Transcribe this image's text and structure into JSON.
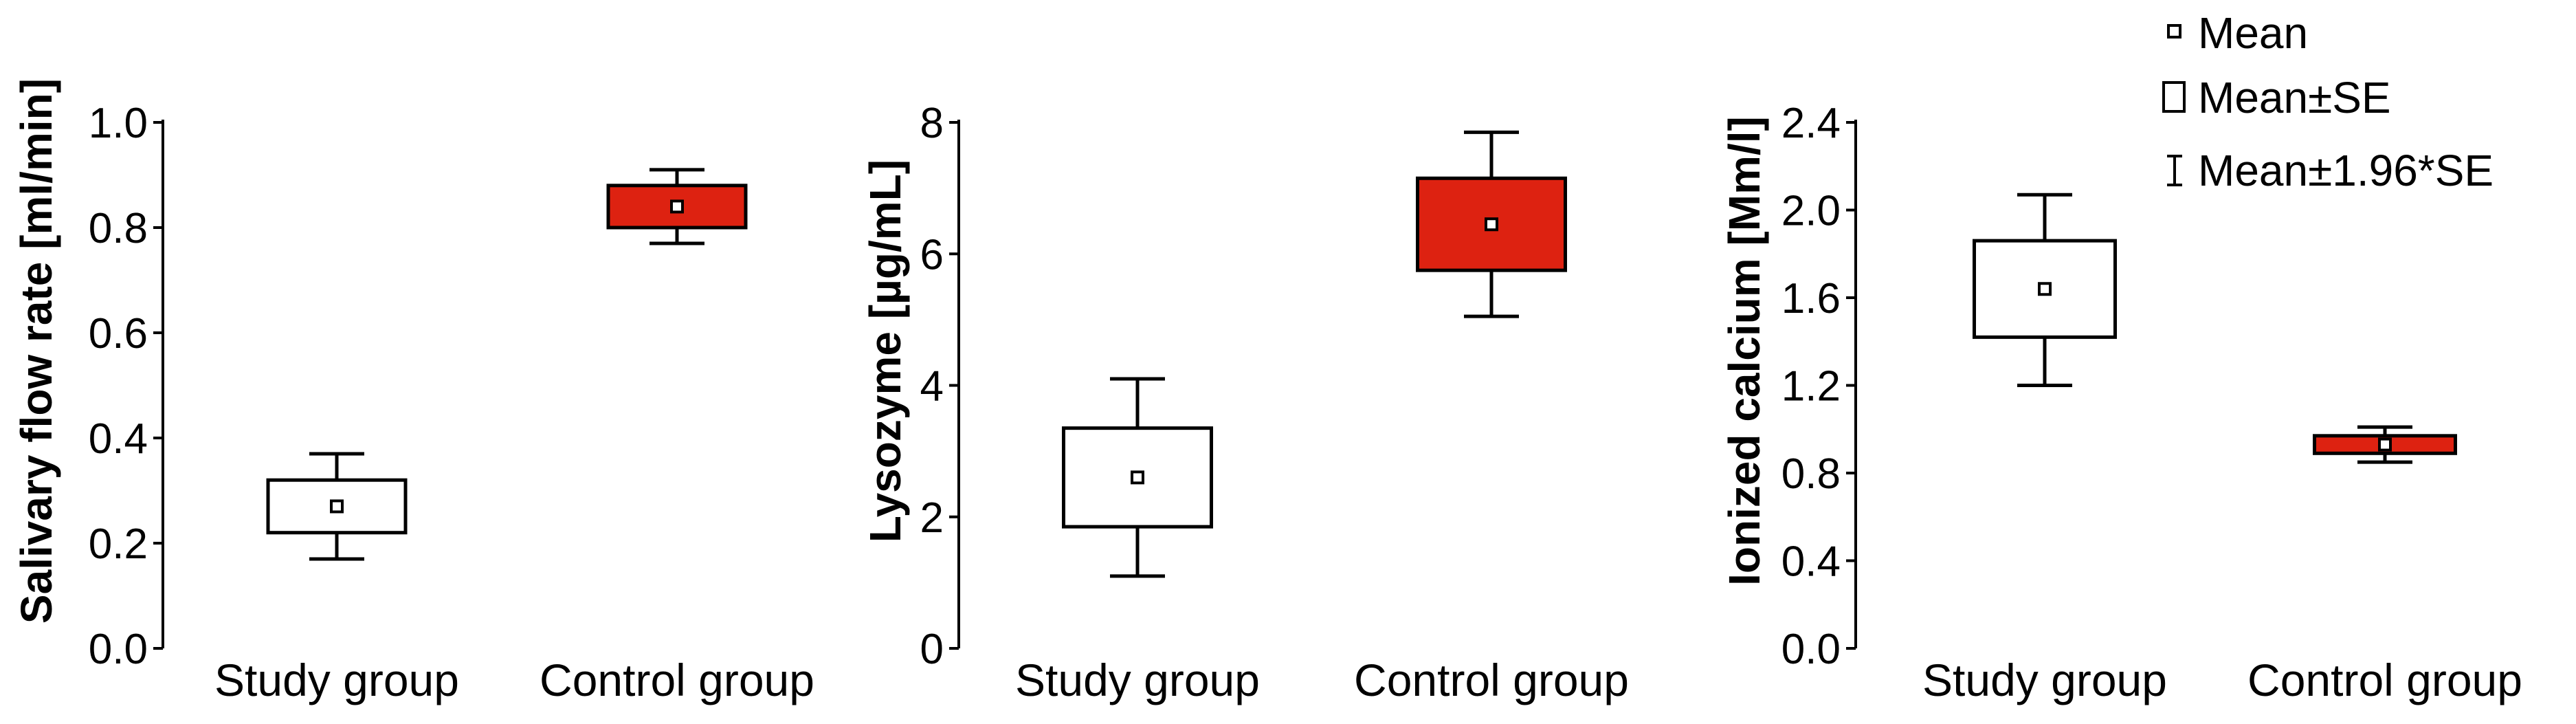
{
  "legend": {
    "mean": "Mean",
    "mean_se": "Mean±SE",
    "mean_ci": "Mean±1.96*SE"
  },
  "colors": {
    "control_fill": "#dd2211",
    "study_fill": "#ffffff",
    "stroke": "#000000"
  },
  "chart_data": [
    {
      "type": "box",
      "ylabel": "Salivary flow rate [ml/min]",
      "ylim": [
        0.0,
        1.0
      ],
      "yticks": [
        "0.0",
        "0.2",
        "0.4",
        "0.6",
        "0.8",
        "1.0"
      ],
      "categories": [
        "Study group",
        "Control group"
      ],
      "series": [
        {
          "category": "Study group",
          "mean": 0.27,
          "se_low": 0.22,
          "se_high": 0.32,
          "ci_low": 0.17,
          "ci_high": 0.37
        },
        {
          "category": "Control group",
          "mean": 0.84,
          "se_low": 0.8,
          "se_high": 0.88,
          "ci_low": 0.77,
          "ci_high": 0.91
        }
      ]
    },
    {
      "type": "box",
      "ylabel": "Lysozyme [µg/mL]",
      "ylim": [
        0,
        8
      ],
      "yticks": [
        "0",
        "2",
        "4",
        "6",
        "8"
      ],
      "categories": [
        "Study group",
        "Control group"
      ],
      "series": [
        {
          "category": "Study group",
          "mean": 2.6,
          "se_low": 1.85,
          "se_high": 3.35,
          "ci_low": 1.1,
          "ci_high": 4.1
        },
        {
          "category": "Control group",
          "mean": 6.45,
          "se_low": 5.75,
          "se_high": 7.15,
          "ci_low": 5.05,
          "ci_high": 7.85
        }
      ]
    },
    {
      "type": "box",
      "ylabel": "Ionized calcium [Mm/l]",
      "ylim": [
        0.0,
        2.4
      ],
      "yticks": [
        "0.0",
        "0.4",
        "0.8",
        "1.2",
        "1.6",
        "2.0",
        "2.4"
      ],
      "categories": [
        "Study group",
        "Control group"
      ],
      "series": [
        {
          "category": "Study group",
          "mean": 1.64,
          "se_low": 1.42,
          "se_high": 1.86,
          "ci_low": 1.2,
          "ci_high": 2.07
        },
        {
          "category": "Control group",
          "mean": 0.93,
          "se_low": 0.89,
          "se_high": 0.97,
          "ci_low": 0.85,
          "ci_high": 1.01
        }
      ]
    }
  ]
}
